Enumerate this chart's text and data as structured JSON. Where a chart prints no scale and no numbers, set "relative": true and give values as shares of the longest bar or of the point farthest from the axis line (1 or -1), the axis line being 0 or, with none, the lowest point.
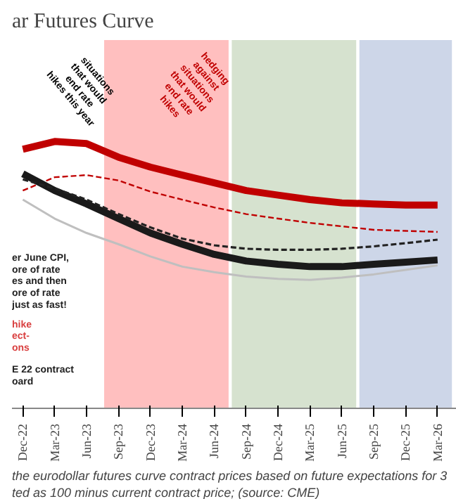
{
  "chart_data": {
    "type": "line",
    "relative": true,
    "title": "ar Futures Curve",
    "categories": [
      "Dec-22",
      "Mar-23",
      "Jun-23",
      "Sep-23",
      "Dec-23",
      "Mar-24",
      "Jun-24",
      "Sep-24",
      "Dec-24",
      "Mar-25",
      "Jun-25",
      "Sep-25",
      "Dec-25",
      "Mar-26"
    ],
    "series": [
      {
        "color": "#c00000",
        "line_style": "solid",
        "values": [
          0.971,
          1.0,
          0.992,
          0.941,
          0.904,
          0.874,
          0.845,
          0.816,
          0.799,
          0.782,
          0.77,
          0.766,
          0.762,
          0.762
        ]
      },
      {
        "color": "#c00000",
        "line_style": "dashed",
        "values": [
          0.816,
          0.866,
          0.874,
          0.854,
          0.812,
          0.782,
          0.753,
          0.728,
          0.711,
          0.695,
          0.682,
          0.669,
          0.665,
          0.661
        ]
      },
      {
        "color": "#1a1a1a",
        "line_style": "solid",
        "values": [
          0.879,
          0.816,
          0.766,
          0.711,
          0.657,
          0.615,
          0.577,
          0.552,
          0.54,
          0.531,
          0.531,
          0.54,
          0.548,
          0.556
        ]
      },
      {
        "color": "#222222",
        "line_style": "dashed",
        "values": [
          0.858,
          0.824,
          0.782,
          0.728,
          0.678,
          0.636,
          0.611,
          0.598,
          0.594,
          0.594,
          0.598,
          0.607,
          0.619,
          0.632
        ]
      },
      {
        "color": "#bfbfbf",
        "line_style": "solid",
        "values": [
          0.782,
          0.711,
          0.657,
          0.615,
          0.569,
          0.531,
          0.51,
          0.494,
          0.485,
          0.481,
          0.49,
          0.502,
          0.519,
          0.536
        ]
      }
    ],
    "bands": [
      {
        "axis": "x",
        "from": "Sep-23",
        "to": "Jun-24",
        "color": "#ffbfbf"
      },
      {
        "axis": "x",
        "from": "Sep-24",
        "to": "Jun-25",
        "color": "#d6e2cf"
      },
      {
        "axis": "x",
        "from": "Sep-25",
        "to": "Mar-26",
        "color": "#cdd6e8"
      }
    ],
    "annotations": [
      "situations\nthat would\nend rate\nhikes this year",
      "hedging\nagainst\nsituations\nthat would\nend rate\nhikes",
      "er June CPI,\nore of rate\nes and then\nore of rate\n just as fast!",
      "hike\nect-\nons",
      "E 22 contract\noard",
      "the eurodollar futures curve contract prices based on future expectations for 3",
      "ted as 100  minus current contract price; (source: CME)"
    ],
    "grid": false
  }
}
